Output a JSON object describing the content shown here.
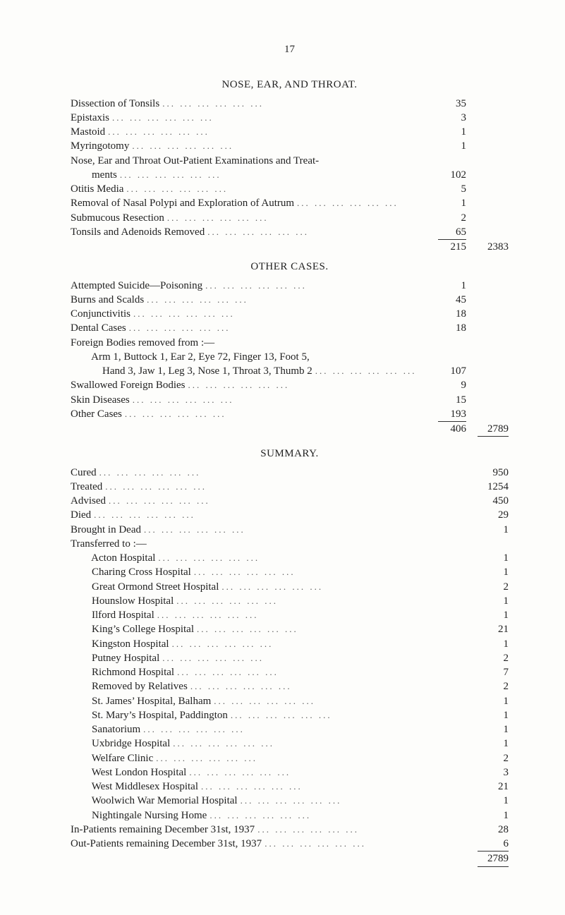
{
  "page_number": "17",
  "sections": {
    "nose": {
      "title": "NOSE,  EAR,  AND  THROAT.",
      "items": [
        {
          "l": "Dissection of Tonsils",
          "v": "35"
        },
        {
          "l": "Epistaxis",
          "v": "3"
        },
        {
          "l": "Mastoid",
          "v": "1"
        },
        {
          "l": "Myringotomy",
          "v": "1"
        },
        {
          "l": "Nose, Ear and Throat Out-Patient Examinations and Treat-",
          "v": ""
        },
        {
          "l": "        ments",
          "v": "102"
        },
        {
          "l": "Otitis Media",
          "v": "5"
        },
        {
          "l": "Removal of Nasal Polypi and Exploration of Autrum",
          "v": "1"
        },
        {
          "l": "Submucous Resection",
          "v": "2"
        },
        {
          "l": "Tonsils and Adenoids Removed",
          "v": "65"
        }
      ],
      "subtotal": "215",
      "total": "2383"
    },
    "other": {
      "title": "OTHER  CASES.",
      "items": [
        {
          "l": "Attempted Suicide—Poisoning",
          "v": "1"
        },
        {
          "l": "Burns and Scalds",
          "v": "45"
        },
        {
          "l": "Conjunctivitis",
          "v": "18"
        },
        {
          "l": "Dental Cases",
          "v": "18"
        },
        {
          "l": "Foreign Bodies removed from :—",
          "v": ""
        },
        {
          "l": "        Arm 1, Buttock 1, Ear 2, Eye 72, Finger 13, Foot 5,",
          "v": ""
        },
        {
          "l": "            Hand 3, Jaw 1, Leg 3, Nose 1, Throat 3, Thumb 2",
          "v": "107"
        },
        {
          "l": "Swallowed Foreign Bodies",
          "v": "9"
        },
        {
          "l": "Skin Diseases",
          "v": "15"
        },
        {
          "l": "Other Cases",
          "v": "193"
        }
      ],
      "subtotal": "406",
      "total": "2789"
    },
    "summary": {
      "title": "SUMMARY.",
      "items": [
        {
          "l": "Cured",
          "v": "950"
        },
        {
          "l": "Treated",
          "v": "1254"
        },
        {
          "l": "Advised",
          "v": "450"
        },
        {
          "l": "Died",
          "v": "29"
        },
        {
          "l": "Brought in Dead",
          "v": "1"
        },
        {
          "l": "Transferred to :—",
          "v": ""
        },
        {
          "l": "        Acton Hospital",
          "v": "1"
        },
        {
          "l": "        Charing Cross Hospital",
          "v": "1"
        },
        {
          "l": "        Great Ormond Street Hospital",
          "v": "2"
        },
        {
          "l": "        Hounslow Hospital",
          "v": "1"
        },
        {
          "l": "        Ilford Hospital",
          "v": "1"
        },
        {
          "l": "        King’s College Hospital",
          "v": "21"
        },
        {
          "l": "        Kingston Hospital",
          "v": "1"
        },
        {
          "l": "        Putney Hospital",
          "v": "2"
        },
        {
          "l": "        Richmond Hospital",
          "v": "7"
        },
        {
          "l": "        Removed by Relatives",
          "v": "2"
        },
        {
          "l": "        St. James’ Hospital, Balham",
          "v": "1"
        },
        {
          "l": "        St. Mary’s Hospital, Paddington",
          "v": "1"
        },
        {
          "l": "        Sanatorium",
          "v": "1"
        },
        {
          "l": "        Uxbridge Hospital",
          "v": "1"
        },
        {
          "l": "        Welfare Clinic",
          "v": "2"
        },
        {
          "l": "        West London Hospital",
          "v": "3"
        },
        {
          "l": "        West Middlesex Hospital",
          "v": "21"
        },
        {
          "l": "        Woolwich War Memorial Hospital",
          "v": "1"
        },
        {
          "l": "        Nightingale Nursing Home",
          "v": "1"
        },
        {
          "l": "In-Patients remaining December 31st, 1937",
          "v": "28"
        },
        {
          "l": "Out-Patients remaining December 31st, 1937",
          "v": "6"
        }
      ],
      "grand_total": "2789"
    }
  },
  "dots": "...        ...        ...        ...        ...        ..."
}
